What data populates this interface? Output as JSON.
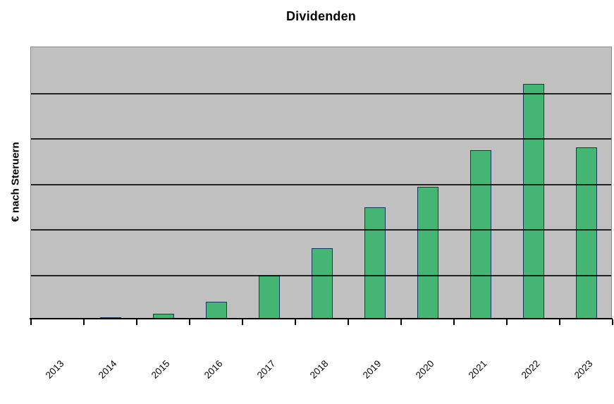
{
  "chart": {
    "title": "Dividenden",
    "ylabel": "€ nach Steruern"
  },
  "chart_data": {
    "type": "bar",
    "title": "Dividenden",
    "xlabel": "",
    "ylabel": "€ nach Steruern",
    "categories": [
      "2013",
      "2014",
      "2015",
      "2016",
      "2017",
      "2018",
      "2019",
      "2020",
      "2021",
      "2022",
      "2023"
    ],
    "values": [
      0,
      0.03,
      0.11,
      0.37,
      0.95,
      1.55,
      2.45,
      2.9,
      3.7,
      5.16,
      3.76
    ],
    "value_units": "gridline-intervals (y axis has no numeric tick labels; scale shown as 6 equal gridline intervals)",
    "ylim": [
      0,
      6
    ],
    "gridline_interval": 1,
    "grid": true,
    "legend": false,
    "y_tick_labels_visible": false,
    "x_label_rotation_deg": 45,
    "colors": {
      "bar_fill": "#45B574",
      "bar_border": "#17365D",
      "plot_background": "#C0C0C0",
      "plot_border": "#8A8A8A",
      "gridline": "#000000",
      "axis": "#000000",
      "text": "#000000",
      "page_background": "#FFFFFF"
    }
  }
}
